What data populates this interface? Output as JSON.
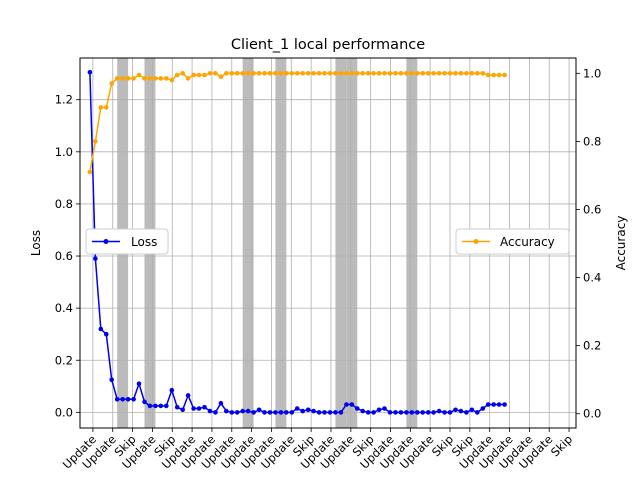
{
  "chart_data": {
    "type": "line",
    "title": "Client_1 local performance",
    "xlabel": "",
    "ylabel_left": "Loss",
    "ylabel_right": "Accuracy",
    "grid": true,
    "y_left_range": [
      -0.06,
      1.36
    ],
    "y_right_range": [
      -0.042,
      1.045
    ],
    "y_left_ticks": [
      "0.0",
      "0.2",
      "0.4",
      "0.6",
      "0.8",
      "1.0",
      "1.2"
    ],
    "y_right_ticks": [
      "0.0",
      "0.2",
      "0.4",
      "0.6",
      "0.8",
      "1.0"
    ],
    "x_ticks": [
      "Update",
      "Update",
      "Skip",
      "Update",
      "Skip",
      "Update",
      "Update",
      "Update",
      "Update",
      "Update",
      "Update",
      "Skip",
      "Update",
      "Update",
      "Skip",
      "Update",
      "Update",
      "Update",
      "Skip",
      "Skip",
      "Update",
      "Update",
      "Update",
      "Update",
      "Skip"
    ],
    "x_range": [
      -1,
      49
    ],
    "skip_intervals": [
      [
        5,
        7
      ],
      [
        10,
        12
      ],
      [
        28,
        30
      ],
      [
        34,
        36
      ],
      [
        45,
        47
      ],
      [
        47,
        49
      ],
      [
        58,
        60
      ]
    ],
    "series": [
      {
        "name": "Loss",
        "color": "#0000ee",
        "axis": "left",
        "legend_position": "center-left",
        "values": [
          1.305,
          0.59,
          0.32,
          0.3,
          0.125,
          0.05,
          0.05,
          0.05,
          0.05,
          0.11,
          0.04,
          0.025,
          0.025,
          0.025,
          0.025,
          0.085,
          0.02,
          0.01,
          0.065,
          0.015,
          0.015,
          0.02,
          0.005,
          0.0,
          0.035,
          0.005,
          0.0,
          0.0,
          0.005,
          0.005,
          0.0,
          0.01,
          0.0,
          0.0,
          0.0,
          0.0,
          0.0,
          0.0,
          0.015,
          0.005,
          0.01,
          0.005,
          0.0,
          0.0,
          0.0,
          0.0,
          0.0,
          0.03,
          0.03,
          0.015,
          0.005,
          0.0,
          0.0,
          0.01,
          0.015,
          0.0,
          0.0,
          0.0,
          0.0,
          0.0,
          0.0,
          0.0,
          0.0,
          0.0,
          0.005,
          0.0,
          0.0,
          0.01,
          0.005,
          0.0,
          0.01,
          0.0,
          0.015,
          0.03,
          0.03,
          0.03,
          0.03
        ]
      },
      {
        "name": "Accuracy",
        "color": "#ffa500",
        "axis": "right",
        "legend_position": "center-right",
        "values": [
          0.71,
          0.8,
          0.9,
          0.9,
          0.97,
          0.985,
          0.985,
          0.985,
          0.985,
          0.995,
          0.985,
          0.985,
          0.985,
          0.985,
          0.985,
          0.98,
          0.995,
          1.0,
          0.985,
          0.995,
          0.995,
          0.995,
          1.0,
          1.0,
          0.99,
          1.0,
          1.0,
          1.0,
          1.0,
          1.0,
          1.0,
          1.0,
          1.0,
          1.0,
          1.0,
          1.0,
          1.0,
          1.0,
          1.0,
          1.0,
          1.0,
          1.0,
          1.0,
          1.0,
          1.0,
          1.0,
          1.0,
          1.0,
          1.0,
          1.0,
          1.0,
          1.0,
          1.0,
          1.0,
          1.0,
          1.0,
          1.0,
          1.0,
          1.0,
          1.0,
          1.0,
          1.0,
          1.0,
          1.0,
          1.0,
          1.0,
          1.0,
          1.0,
          1.0,
          1.0,
          1.0,
          1.0,
          1.0,
          0.995,
          0.995,
          0.995,
          0.995
        ]
      }
    ]
  }
}
